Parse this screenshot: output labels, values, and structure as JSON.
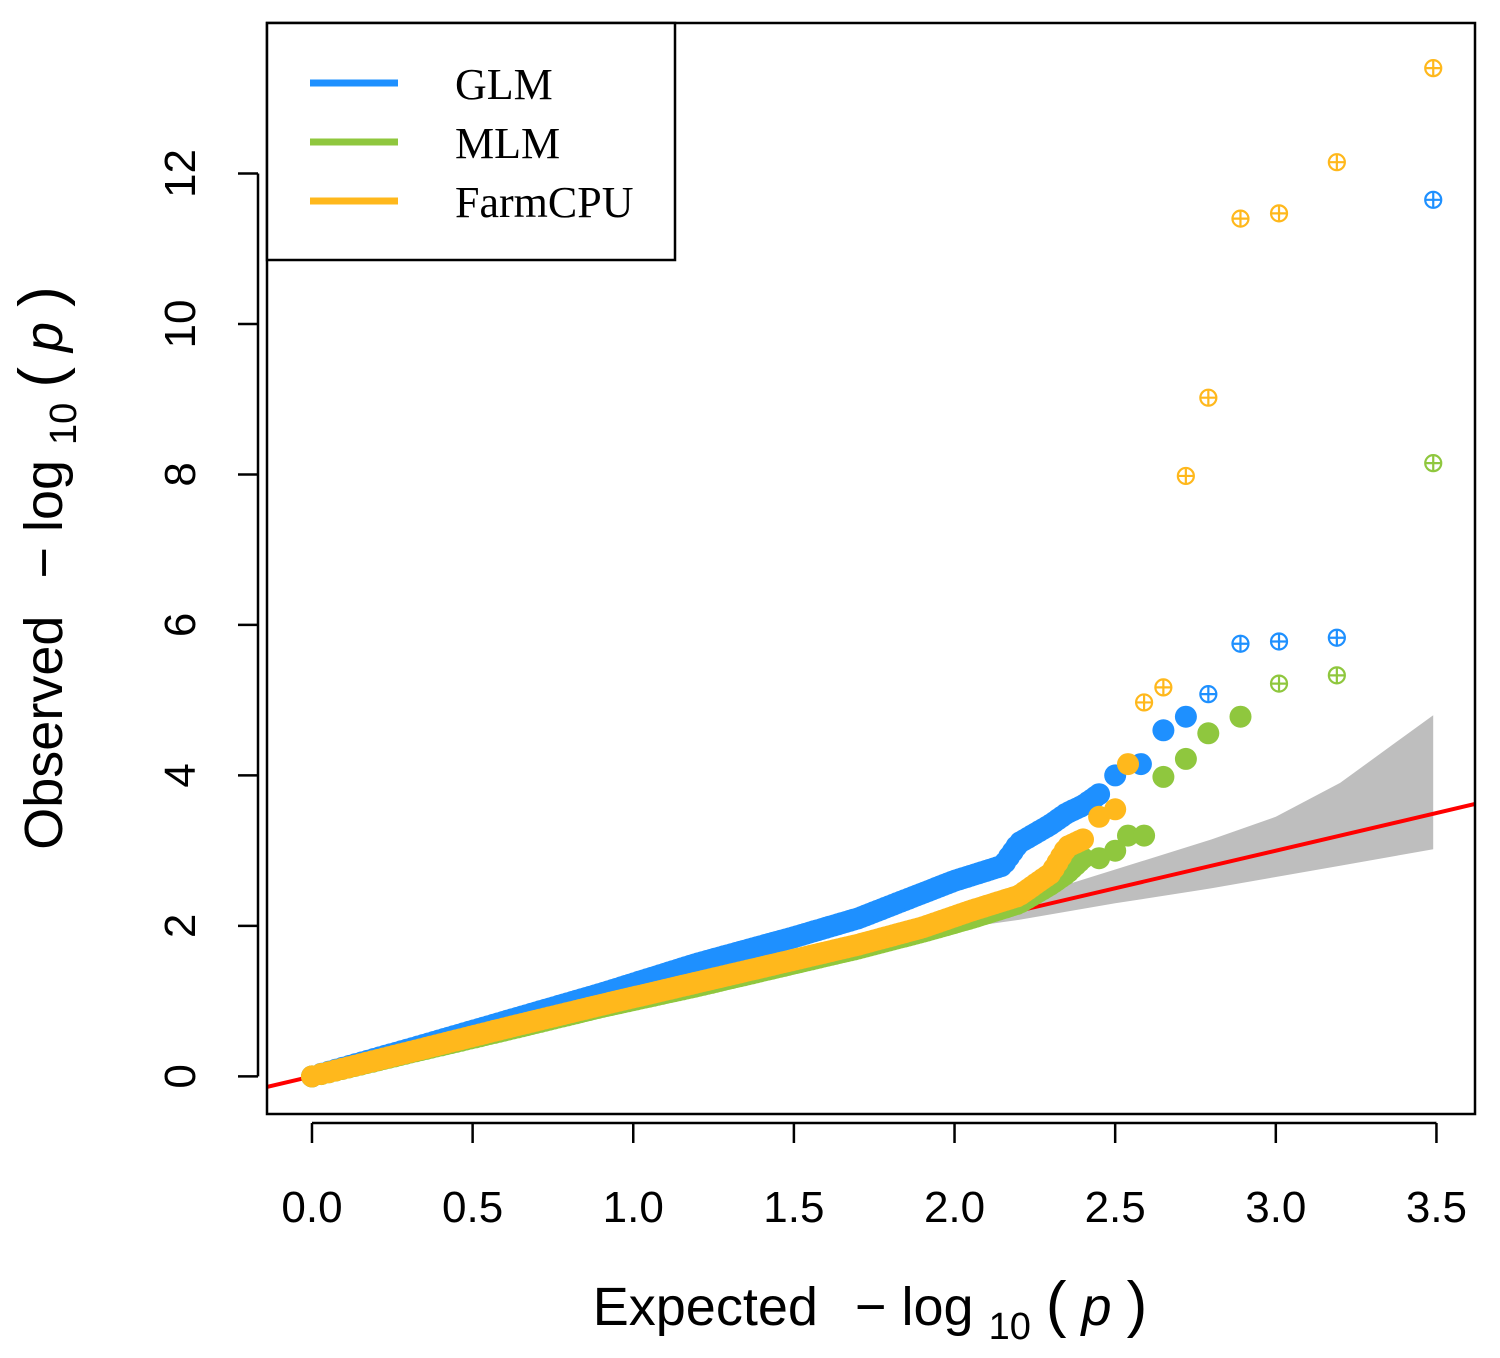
{
  "chart_data": {
    "type": "scatter",
    "title": "",
    "xlabel_text": "Expected",
    "ylabel_text": "Observed",
    "axis_label_math_parts": {
      "minus": "−",
      "log": "log",
      "base": "10",
      "open": "(",
      "var": "p",
      "close": ")"
    },
    "xlim": [
      -0.14,
      3.62
    ],
    "ylim": [
      -0.5,
      14.0
    ],
    "x_ticks": [
      0.0,
      0.5,
      1.0,
      1.5,
      2.0,
      2.5,
      3.0,
      3.5
    ],
    "x_tick_labels": [
      "0.0",
      "0.5",
      "1.0",
      "1.5",
      "2.0",
      "2.5",
      "3.0",
      "3.5"
    ],
    "y_ticks": [
      0,
      2,
      4,
      6,
      8,
      10,
      12
    ],
    "y_tick_labels": [
      "0",
      "2",
      "4",
      "6",
      "8",
      "10",
      "12"
    ],
    "legend_position": "top-left",
    "reference_line": {
      "slope": 1,
      "intercept": 0,
      "color": "#ff0000"
    },
    "confidence_band": {
      "color": "#bebebe",
      "x": [
        1.9,
        2.2,
        2.5,
        2.8,
        3.0,
        3.2,
        3.49
      ],
      "lower": [
        1.9,
        2.08,
        2.3,
        2.5,
        2.65,
        2.8,
        3.02
      ],
      "upper": [
        1.9,
        2.35,
        2.75,
        3.15,
        3.45,
        3.9,
        4.8
      ]
    },
    "series": [
      {
        "name": "GLM",
        "color": "#1e90ff",
        "curve_x": [
          0,
          0.3,
          0.6,
          0.9,
          1.2,
          1.5,
          1.7,
          1.85,
          2.0,
          2.15,
          2.2,
          2.3,
          2.35,
          2.4,
          2.45
        ],
        "curve_y": [
          0,
          0.36,
          0.73,
          1.1,
          1.5,
          1.85,
          2.1,
          2.35,
          2.6,
          2.8,
          3.1,
          3.35,
          3.5,
          3.6,
          3.75
        ],
        "points": [
          [
            2.5,
            4.0
          ],
          [
            2.58,
            4.15
          ],
          [
            2.65,
            4.6
          ],
          [
            2.72,
            4.78
          ]
        ],
        "top_points": [
          [
            2.79,
            5.08
          ],
          [
            2.89,
            5.75
          ],
          [
            3.01,
            5.78
          ],
          [
            3.19,
            5.83
          ],
          [
            3.49,
            11.65
          ]
        ]
      },
      {
        "name": "MLM",
        "color": "#8fc73e",
        "curve_x": [
          0,
          0.3,
          0.6,
          0.9,
          1.2,
          1.5,
          1.7,
          1.9,
          2.05,
          2.2,
          2.3,
          2.35,
          2.4
        ],
        "curve_y": [
          0,
          0.31,
          0.61,
          0.92,
          1.2,
          1.5,
          1.7,
          1.92,
          2.1,
          2.3,
          2.55,
          2.7,
          2.9
        ],
        "points": [
          [
            2.45,
            2.9
          ],
          [
            2.5,
            3.0
          ],
          [
            2.54,
            3.2
          ],
          [
            2.59,
            3.2
          ],
          [
            2.65,
            3.98
          ],
          [
            2.72,
            4.22
          ],
          [
            2.79,
            4.56
          ],
          [
            2.89,
            4.78
          ]
        ],
        "top_points": [
          [
            3.01,
            5.22
          ],
          [
            3.19,
            5.33
          ],
          [
            3.49,
            8.15
          ]
        ]
      },
      {
        "name": "FarmCPU",
        "color": "#ffb81c",
        "curve_x": [
          0,
          0.3,
          0.6,
          0.9,
          1.2,
          1.5,
          1.7,
          1.9,
          2.05,
          2.2,
          2.3,
          2.35,
          2.4
        ],
        "curve_y": [
          0,
          0.32,
          0.64,
          0.95,
          1.25,
          1.55,
          1.75,
          1.98,
          2.2,
          2.4,
          2.7,
          3.05,
          3.15
        ],
        "points": [
          [
            2.45,
            3.45
          ],
          [
            2.5,
            3.55
          ],
          [
            2.54,
            4.15
          ]
        ],
        "top_points": [
          [
            2.59,
            4.97
          ],
          [
            2.65,
            5.17
          ],
          [
            2.72,
            7.98
          ],
          [
            2.79,
            9.02
          ],
          [
            2.89,
            11.4
          ],
          [
            3.01,
            11.47
          ],
          [
            3.19,
            12.15
          ],
          [
            3.49,
            13.4
          ]
        ]
      }
    ]
  }
}
